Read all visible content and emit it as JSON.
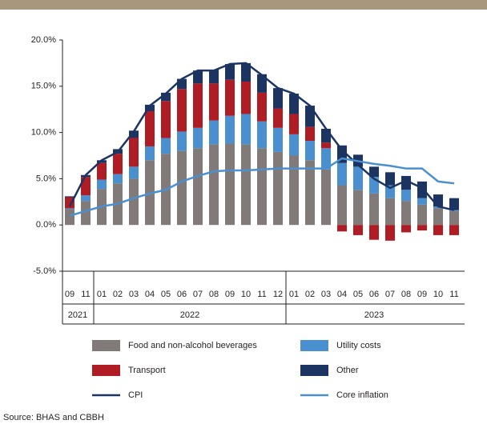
{
  "chart_data": {
    "type": "bar",
    "category_groups": [
      {
        "label": "2021",
        "categories": [
          "09",
          "11"
        ]
      },
      {
        "label": "2022",
        "categories": [
          "01",
          "02",
          "03",
          "04",
          "05",
          "06",
          "07",
          "08",
          "09",
          "10",
          "11",
          "12"
        ]
      },
      {
        "label": "2023",
        "categories": [
          "01",
          "02",
          "03",
          "04",
          "05",
          "06",
          "07",
          "08",
          "09",
          "10",
          "11"
        ]
      }
    ],
    "series": [
      {
        "name": "Food and non-alcohol beverages",
        "type": "bar",
        "color": "#827a78",
        "values": [
          1.7,
          2.6,
          3.9,
          4.5,
          5.0,
          7.0,
          7.7,
          8.0,
          8.3,
          8.7,
          8.8,
          8.7,
          8.3,
          7.9,
          7.5,
          7.0,
          6.0,
          4.3,
          3.8,
          3.4,
          2.9,
          2.6,
          2.2,
          1.8,
          1.5
        ]
      },
      {
        "name": "Utility costs",
        "type": "bar",
        "color": "#4a90d0",
        "values": [
          0.1,
          0.6,
          1.0,
          1.0,
          1.3,
          1.5,
          1.7,
          2.1,
          2.2,
          2.6,
          3.0,
          3.3,
          2.9,
          2.6,
          2.3,
          2.1,
          2.3,
          2.4,
          2.5,
          1.8,
          1.4,
          1.2,
          0.7,
          0.2,
          0.1
        ]
      },
      {
        "name": "Transport",
        "type": "bar",
        "color": "#b01c24",
        "values": [
          1.2,
          2.0,
          1.8,
          2.2,
          3.1,
          3.8,
          4.0,
          4.6,
          4.8,
          4.0,
          3.9,
          3.5,
          3.1,
          2.1,
          2.2,
          1.5,
          0.6,
          -0.7,
          -1.1,
          -1.6,
          -1.7,
          -0.8,
          -0.6,
          -1.1,
          -1.1
        ]
      },
      {
        "name": "Other",
        "type": "bar",
        "color": "#1c3461",
        "values": [
          0.1,
          0.2,
          0.3,
          0.5,
          0.8,
          0.7,
          0.9,
          1.1,
          1.4,
          1.5,
          1.7,
          2.0,
          2.0,
          2.2,
          2.2,
          2.3,
          1.5,
          1.9,
          1.3,
          1.1,
          1.4,
          1.5,
          1.8,
          1.3,
          1.3
        ]
      },
      {
        "name": "CPI",
        "type": "line",
        "color": "#1c3461",
        "values": [
          2.0,
          5.4,
          7.0,
          7.9,
          10.1,
          12.9,
          14.2,
          15.8,
          16.7,
          16.7,
          17.4,
          17.5,
          16.2,
          14.8,
          14.2,
          12.9,
          10.4,
          8.1,
          6.5,
          5.0,
          4.0,
          4.8,
          4.0,
          2.0,
          1.6
        ]
      },
      {
        "name": "Core inflation",
        "type": "line",
        "color": "#4a90d0",
        "values": [
          1.0,
          1.5,
          2.0,
          2.3,
          2.9,
          3.4,
          3.8,
          4.7,
          5.3,
          5.8,
          5.9,
          5.9,
          6.0,
          6.1,
          6.1,
          6.1,
          6.1,
          7.2,
          6.9,
          6.6,
          6.4,
          6.1,
          6.1,
          4.7,
          4.5
        ]
      }
    ],
    "ylim": [
      -5,
      20
    ],
    "yticks": [
      {
        "value": -5,
        "label": "-5.0%"
      },
      {
        "value": 0,
        "label": "0.0%"
      },
      {
        "value": 5,
        "label": "5.0%"
      },
      {
        "value": 10,
        "label": "10.0%"
      },
      {
        "value": 15,
        "label": "15.0%"
      },
      {
        "value": 20,
        "label": "20.0%"
      }
    ],
    "source": "Source: BHAS and CBBH"
  }
}
